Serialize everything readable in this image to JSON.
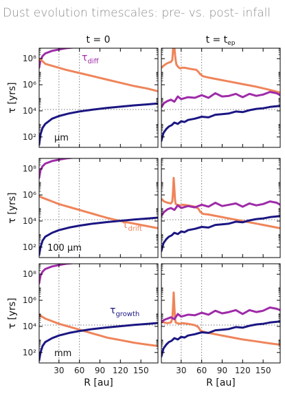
{
  "title": "Dust evolution timescales: pre- vs. post- infall",
  "columns": [
    {
      "label": "t = 0"
    },
    {
      "label_main": "t = t",
      "label_sub": "ep"
    }
  ],
  "ylabel_main": "τ [yrs]",
  "xlabel": "R [au]",
  "rows": [
    {
      "grain_label": "μm"
    },
    {
      "grain_label": "100 μm"
    },
    {
      "grain_label": "mm"
    }
  ],
  "colors": {
    "diff": "#9e2ba8",
    "drift": "#ef845a",
    "growth": "#1b1682",
    "ref": "#777777"
  },
  "curve_labels": {
    "diff": {
      "main": "τ",
      "sub": "diff"
    },
    "drift": {
      "main": "τ",
      "sub": "drift"
    },
    "growth": {
      "main": "τ",
      "sub": "growth"
    }
  },
  "chart_data": {
    "type": "line",
    "layout": "3 rows x 2 columns",
    "xlim": [
      1,
      175
    ],
    "ylim_log10": [
      1.2,
      8.8
    ],
    "ytick_log10": [
      2,
      4,
      6,
      8
    ],
    "ytick_labels": [
      "10²",
      "10⁴",
      "10⁶",
      "10⁸"
    ],
    "xticks": [
      30,
      60,
      90,
      120,
      150
    ],
    "ref_lines": {
      "x": [
        30,
        60
      ],
      "y_log10": 4.1,
      "style": "dotted"
    },
    "panels": [
      {
        "row": 0,
        "col": 0,
        "series": [
          {
            "key": "diff",
            "x": [
              1,
              3,
              6,
              10,
              20,
              40,
              60,
              80,
              100
            ],
            "y": [
              7.3,
              7.9,
              8.2,
              8.4,
              8.6,
              8.8,
              8.9,
              9.0,
              9.1
            ]
          },
          {
            "key": "drift",
            "x": [
              1,
              5,
              10,
              20,
              30,
              40,
              60,
              80,
              100,
              120,
              140,
              160,
              175
            ],
            "y": [
              8.0,
              7.85,
              7.6,
              7.45,
              7.3,
              7.15,
              6.9,
              6.65,
              6.4,
              6.15,
              5.9,
              5.7,
              5.5
            ]
          },
          {
            "key": "growth",
            "x": [
              1,
              3,
              6,
              10,
              20,
              30,
              45,
              60,
              80,
              100,
              120,
              140,
              160,
              175
            ],
            "y": [
              1.4,
              2.2,
              2.7,
              3.0,
              3.4,
              3.6,
              3.8,
              3.95,
              4.1,
              4.22,
              4.32,
              4.42,
              4.5,
              4.56
            ]
          }
        ]
      },
      {
        "row": 0,
        "col": 1,
        "series": [
          {
            "key": "drift",
            "x": [
              1,
              4,
              8,
              12,
              15,
              17,
              18,
              19,
              20,
              21,
              22,
              23,
              25,
              27,
              29,
              31,
              35,
              45,
              52,
              55,
              58,
              62,
              70,
              80,
              100,
              120,
              140,
              160,
              175
            ],
            "y": [
              7.3,
              7.45,
              7.6,
              7.7,
              7.75,
              7.9,
              8.6,
              9.2,
              8.9,
              8.3,
              7.85,
              7.55,
              7.4,
              7.3,
              7.25,
              7.3,
              7.3,
              7.2,
              7.15,
              7.0,
              6.8,
              6.65,
              6.55,
              6.45,
              6.25,
              6.05,
              5.85,
              5.6,
              5.4
            ]
          },
          {
            "key": "diff",
            "x": [
              1,
              5,
              10,
              15,
              20,
              25,
              30,
              40,
              50,
              60,
              70,
              80,
              90,
              100,
              110,
              120,
              130,
              140,
              150,
              160,
              170,
              175
            ],
            "y": [
              4.3,
              4.6,
              4.75,
              4.85,
              4.7,
              5.1,
              4.9,
              5.05,
              5.0,
              5.2,
              5.0,
              5.35,
              5.1,
              5.15,
              5.3,
              5.05,
              5.3,
              5.15,
              5.25,
              5.45,
              5.35,
              5.2
            ]
          },
          {
            "key": "growth",
            "x": [
              1,
              4,
              8,
              12,
              16,
              20,
              25,
              30,
              35,
              40,
              50,
              60,
              70,
              80,
              90,
              100,
              110,
              120,
              130,
              140,
              150,
              160,
              170,
              175
            ],
            "y": [
              1.7,
              2.3,
              2.6,
              2.8,
              2.9,
              3.1,
              3.0,
              3.2,
              3.15,
              3.3,
              3.4,
              3.55,
              3.5,
              3.7,
              3.75,
              3.8,
              3.95,
              3.9,
              4.05,
              4.15,
              4.2,
              4.3,
              4.35,
              4.38
            ]
          }
        ]
      },
      {
        "row": 1,
        "col": 0,
        "series": [
          {
            "key": "diff",
            "x": [
              1,
              3,
              6,
              10,
              20,
              40,
              60,
              80,
              100
            ],
            "y": [
              7.3,
              7.9,
              8.2,
              8.4,
              8.6,
              8.8,
              8.9,
              9.0,
              9.1
            ]
          },
          {
            "key": "drift",
            "x": [
              1,
              5,
              10,
              20,
              30,
              40,
              50,
              60,
              70,
              80,
              90,
              100,
              120,
              140,
              160,
              175
            ],
            "y": [
              5.9,
              5.8,
              5.7,
              5.5,
              5.3,
              5.15,
              5.0,
              4.85,
              4.7,
              4.55,
              4.4,
              4.25,
              4.0,
              3.8,
              3.6,
              3.45
            ]
          },
          {
            "key": "growth",
            "x": [
              1,
              3,
              6,
              10,
              20,
              30,
              45,
              60,
              80,
              100,
              120,
              140,
              160,
              175
            ],
            "y": [
              1.4,
              2.0,
              2.5,
              2.8,
              3.1,
              3.3,
              3.5,
              3.65,
              3.8,
              3.92,
              4.02,
              4.12,
              4.2,
              4.26
            ]
          }
        ]
      },
      {
        "row": 1,
        "col": 1,
        "series": [
          {
            "key": "drift",
            "x": [
              1,
              5,
              10,
              15,
              17,
              18,
              19,
              20,
              21,
              22,
              24,
              28,
              32,
              40,
              50,
              55,
              58,
              62,
              70,
              80,
              100,
              120,
              140,
              160,
              175
            ],
            "y": [
              5.7,
              5.5,
              5.4,
              5.35,
              5.5,
              6.2,
              7.3,
              6.5,
              5.6,
              5.3,
              5.25,
              5.2,
              5.25,
              5.2,
              5.1,
              4.95,
              4.7,
              4.55,
              4.5,
              4.4,
              4.2,
              4.0,
              3.8,
              3.6,
              3.45
            ]
          },
          {
            "key": "diff",
            "x": [
              1,
              5,
              10,
              15,
              20,
              25,
              30,
              40,
              50,
              60,
              70,
              80,
              90,
              100,
              110,
              120,
              130,
              140,
              150,
              160,
              170,
              175
            ],
            "y": [
              4.4,
              4.7,
              4.9,
              5.0,
              4.85,
              5.2,
              5.0,
              5.15,
              5.05,
              5.25,
              5.1,
              5.4,
              5.15,
              5.25,
              5.35,
              5.1,
              5.35,
              5.2,
              5.3,
              5.5,
              5.4,
              5.25
            ]
          },
          {
            "key": "growth",
            "x": [
              1,
              4,
              8,
              12,
              16,
              20,
              25,
              30,
              35,
              40,
              50,
              60,
              70,
              80,
              90,
              100,
              110,
              120,
              130,
              140,
              150,
              160,
              170,
              175
            ],
            "y": [
              1.7,
              2.3,
              2.6,
              2.8,
              2.9,
              3.1,
              3.0,
              3.2,
              3.15,
              3.3,
              3.4,
              3.55,
              3.5,
              3.7,
              3.75,
              3.8,
              3.95,
              3.9,
              4.05,
              4.15,
              4.2,
              4.3,
              4.35,
              4.38
            ]
          }
        ]
      },
      {
        "row": 2,
        "col": 0,
        "series": [
          {
            "key": "diff",
            "x": [
              1,
              3,
              6,
              10,
              20,
              40,
              60,
              80,
              100
            ],
            "y": [
              7.3,
              7.9,
              8.2,
              8.4,
              8.6,
              8.8,
              8.9,
              9.0,
              9.1
            ]
          },
          {
            "key": "drift",
            "x": [
              1,
              5,
              10,
              20,
              30,
              40,
              50,
              60,
              70,
              80,
              90,
              100,
              120,
              140,
              160,
              175
            ],
            "y": [
              4.9,
              4.75,
              4.6,
              4.4,
              4.2,
              4.05,
              3.9,
              3.75,
              3.6,
              3.45,
              3.3,
              3.15,
              2.95,
              2.75,
              2.6,
              2.5
            ]
          },
          {
            "key": "growth",
            "x": [
              1,
              3,
              6,
              10,
              20,
              30,
              45,
              60,
              80,
              100,
              120,
              140,
              160,
              175
            ],
            "y": [
              1.4,
              2.0,
              2.5,
              2.8,
              3.1,
              3.3,
              3.5,
              3.65,
              3.8,
              3.92,
              4.02,
              4.12,
              4.2,
              4.26
            ]
          }
        ]
      },
      {
        "row": 2,
        "col": 1,
        "series": [
          {
            "key": "drift",
            "x": [
              1,
              5,
              10,
              15,
              17,
              18,
              19,
              20,
              21,
              22,
              24,
              28,
              32,
              40,
              50,
              55,
              58,
              62,
              70,
              80,
              100,
              120,
              140,
              160,
              175
            ],
            "y": [
              4.4,
              4.3,
              4.25,
              4.3,
              4.6,
              5.4,
              6.6,
              5.5,
              4.6,
              4.3,
              4.25,
              4.2,
              4.25,
              4.2,
              4.1,
              3.95,
              3.7,
              3.6,
              3.5,
              3.4,
              3.2,
              3.0,
              2.85,
              2.7,
              2.6
            ]
          },
          {
            "key": "diff",
            "x": [
              1,
              5,
              10,
              15,
              20,
              25,
              30,
              40,
              50,
              60,
              70,
              80,
              90,
              100,
              110,
              120,
              130,
              140,
              150,
              160,
              170,
              175
            ],
            "y": [
              4.3,
              4.5,
              4.6,
              4.7,
              4.55,
              4.95,
              4.75,
              4.9,
              4.85,
              5.05,
              4.9,
              5.2,
              5.0,
              5.1,
              5.25,
              4.95,
              5.25,
              5.1,
              5.2,
              5.45,
              5.35,
              5.25
            ]
          },
          {
            "key": "growth",
            "x": [
              1,
              4,
              8,
              12,
              16,
              20,
              25,
              30,
              35,
              40,
              50,
              60,
              70,
              80,
              90,
              100,
              110,
              120,
              130,
              140,
              150,
              160,
              170,
              175
            ],
            "y": [
              1.7,
              2.3,
              2.6,
              2.8,
              2.9,
              3.1,
              3.0,
              3.2,
              3.15,
              3.3,
              3.4,
              3.55,
              3.5,
              3.7,
              3.75,
              3.8,
              3.95,
              3.9,
              4.05,
              4.15,
              4.2,
              4.3,
              4.35,
              4.38
            ]
          }
        ]
      }
    ]
  }
}
